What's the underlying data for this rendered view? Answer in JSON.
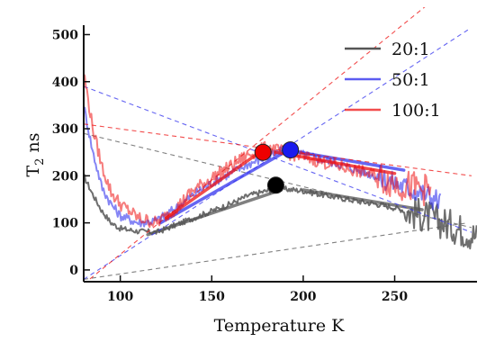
{
  "chart_data": {
    "type": "line",
    "xlabel": "Temperature K",
    "ylabel_main": "T",
    "ylabel_sub": "2",
    "ylabel_unit": " ns",
    "xlim": [
      80,
      295
    ],
    "ylim": [
      -25,
      520
    ],
    "x_ticks": [
      100,
      150,
      200,
      250
    ],
    "x_tick_labels": [
      "100",
      "150",
      "200",
      "250"
    ],
    "y_ticks": [
      0,
      100,
      200,
      300,
      400,
      500
    ],
    "y_tick_labels": [
      "0",
      "100",
      "200",
      "300",
      "400",
      "500"
    ],
    "grid": false,
    "legend_position": "top-right",
    "series": [
      {
        "name": "20:1",
        "color": "#555555",
        "opacity": 0.85,
        "noise": 6,
        "points": [
          [
            80,
            200
          ],
          [
            85,
            160
          ],
          [
            90,
            125
          ],
          [
            95,
            100
          ],
          [
            100,
            88
          ],
          [
            110,
            82
          ],
          [
            120,
            80
          ],
          [
            130,
            95
          ],
          [
            140,
            110
          ],
          [
            150,
            125
          ],
          [
            160,
            140
          ],
          [
            170,
            158
          ],
          [
            180,
            168
          ],
          [
            190,
            172
          ],
          [
            200,
            168
          ],
          [
            210,
            160
          ],
          [
            220,
            153
          ],
          [
            230,
            146
          ],
          [
            240,
            140
          ],
          [
            250,
            132
          ],
          [
            260,
            122
          ],
          [
            270,
            110
          ],
          [
            280,
            95
          ],
          [
            290,
            80
          ],
          [
            295,
            70
          ]
        ],
        "fit_low": [
          [
            80,
            -20
          ],
          [
            290,
            100
          ]
        ],
        "fit_high": [
          [
            80,
            290
          ],
          [
            292,
            90
          ]
        ],
        "fit_low_bold": [
          [
            115,
            75
          ],
          [
            188,
            170
          ]
        ],
        "fit_high_bold": [
          [
            200,
            170
          ],
          [
            265,
            128
          ]
        ],
        "peak": [
          185,
          180
        ]
      },
      {
        "name": "50:1",
        "color": "#3333ee",
        "opacity": 0.6,
        "noise": 10,
        "points": [
          [
            80,
            350
          ],
          [
            85,
            250
          ],
          [
            90,
            175
          ],
          [
            95,
            140
          ],
          [
            100,
            115
          ],
          [
            110,
            100
          ],
          [
            120,
            105
          ],
          [
            130,
            130
          ],
          [
            140,
            160
          ],
          [
            150,
            185
          ],
          [
            160,
            205
          ],
          [
            170,
            225
          ],
          [
            180,
            240
          ],
          [
            190,
            255
          ],
          [
            200,
            245
          ],
          [
            210,
            235
          ],
          [
            220,
            225
          ],
          [
            230,
            212
          ],
          [
            240,
            200
          ],
          [
            250,
            185
          ],
          [
            260,
            170
          ],
          [
            270,
            155
          ],
          [
            275,
            145
          ]
        ],
        "fit_low": [
          [
            80,
            -20
          ],
          [
            290,
            510
          ]
        ],
        "fit_high": [
          [
            80,
            390
          ],
          [
            292,
            80
          ]
        ],
        "fit_low_bold": [
          [
            122,
            100
          ],
          [
            192,
            255
          ]
        ],
        "fit_high_bold": [
          [
            195,
            252
          ],
          [
            255,
            212
          ]
        ],
        "peak": [
          193,
          255
        ]
      },
      {
        "name": "100:1",
        "color": "#ee1111",
        "opacity": 0.55,
        "noise": 14,
        "points": [
          [
            80,
            420
          ],
          [
            85,
            300
          ],
          [
            90,
            220
          ],
          [
            95,
            165
          ],
          [
            100,
            140
          ],
          [
            110,
            110
          ],
          [
            120,
            100
          ],
          [
            130,
            130
          ],
          [
            140,
            170
          ],
          [
            150,
            195
          ],
          [
            160,
            220
          ],
          [
            170,
            245
          ],
          [
            180,
            260
          ],
          [
            190,
            250
          ],
          [
            200,
            240
          ],
          [
            210,
            230
          ],
          [
            220,
            220
          ],
          [
            230,
            210
          ],
          [
            240,
            200
          ],
          [
            250,
            185
          ],
          [
            260,
            175
          ],
          [
            270,
            170
          ]
        ],
        "fit_low": [
          [
            80,
            -30
          ],
          [
            270,
            570
          ]
        ],
        "fit_high": [
          [
            80,
            310
          ],
          [
            292,
            200
          ]
        ],
        "fit_low_bold": [
          [
            125,
            110
          ],
          [
            178,
            255
          ]
        ],
        "fit_high_bold": [
          [
            185,
            250
          ],
          [
            250,
            205
          ]
        ],
        "peak": [
          178,
          250
        ]
      }
    ]
  }
}
